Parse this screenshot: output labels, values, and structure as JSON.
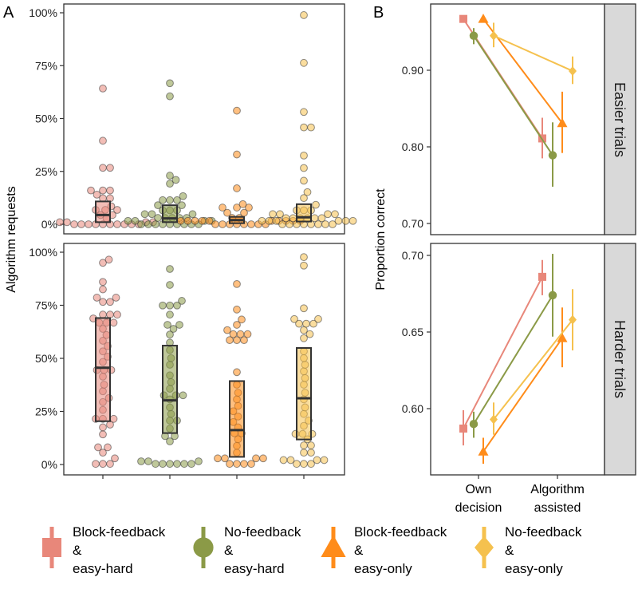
{
  "panel_labels": {
    "a": "A",
    "b": "B"
  },
  "legend": [
    {
      "line1": "Block-feedback",
      "line2": "&",
      "line3": "easy-hard",
      "color": "#E8877A",
      "shape": "square"
    },
    {
      "line1": "No-feedback",
      "line2": "&",
      "line3": "easy-hard",
      "color": "#8B9A47",
      "shape": "circle"
    },
    {
      "line1": "Block-feedback",
      "line2": "&",
      "line3": "easy-only",
      "color": "#FF8C1A",
      "shape": "triangle"
    },
    {
      "line1": "No-feedback",
      "line2": "&",
      "line3": "easy-only",
      "color": "#F5C14E",
      "shape": "diamond"
    }
  ],
  "chart_data": [
    {
      "type": "scatter",
      "title": "A",
      "xlabel": "",
      "ylabel": "Algorithm requests",
      "ylim": [
        0,
        100
      ],
      "yticks": [
        "0%",
        "25%",
        "50%",
        "75%",
        "100%"
      ],
      "groups": [
        "Block-feedback & easy-hard",
        "No-feedback & easy-hard",
        "Block-feedback & easy-only",
        "No-feedback & easy-only"
      ],
      "panels": [
        {
          "name": "Easier trials",
          "boxes": [
            {
              "q1": 1,
              "median": 4.4,
              "q3": 10.8
            },
            {
              "q1": 1,
              "median": 2.8,
              "q3": 9
            },
            {
              "q1": 0.5,
              "median": 2,
              "q3": 3.5
            },
            {
              "q1": 1.3,
              "median": 3.3,
              "q3": 9.5
            }
          ],
          "points": [
            [
              64.2,
              39.5,
              26.7,
              26.7,
              16,
              16,
              16,
              14,
              12.3,
              12.3,
              8.5,
              6.8,
              6.8,
              6.8,
              4.4,
              4.4,
              2.9,
              1,
              1,
              1,
              1,
              0,
              0,
              0,
              0,
              0,
              0,
              0,
              0,
              0,
              0
            ],
            [
              66.7,
              60.5,
              23,
              21,
              19.2,
              13.3,
              11.4,
              11.4,
              11.4,
              9,
              9,
              6.6,
              6.6,
              6.6,
              4.8,
              4.8,
              4.8,
              3,
              3,
              3,
              3,
              3,
              1.6,
              1.6,
              1.6,
              1.6,
              0,
              0,
              0,
              0,
              0,
              0,
              0,
              0,
              0
            ],
            [
              53.7,
              33,
              17,
              9.5,
              7.9,
              7.9,
              7.9,
              5.4,
              5.4,
              3,
              3,
              1.6,
              1.6,
              1.6,
              1.6,
              1.6,
              1.6,
              1.6,
              1.6,
              1.6,
              1.6,
              0,
              0,
              0,
              0,
              0,
              0,
              0,
              0
            ],
            [
              98.9,
              76.3,
              53.1,
              45.8,
              45.8,
              32.5,
              26.6,
              20.6,
              15.2,
              12.4,
              9.2,
              6.6,
              6.6,
              6.6,
              4.8,
              4.8,
              4.8,
              4.8,
              2.9,
              2.9,
              2.9,
              2.9,
              2.9,
              2.9,
              1.6,
              1.6,
              1.6,
              1.6,
              1.6,
              1.6,
              0,
              0,
              0,
              0,
              0,
              0,
              0,
              0
            ]
          ]
        },
        {
          "name": "Harder trials",
          "boxes": [
            {
              "q1": 20.4,
              "median": 45.6,
              "q3": 69
            },
            {
              "q1": 14.8,
              "median": 30.2,
              "q3": 56
            },
            {
              "q1": 3.6,
              "median": 16.2,
              "q3": 39.3
            },
            {
              "q1": 11.8,
              "median": 31.2,
              "q3": 54.9
            }
          ],
          "points": [
            [
              96.5,
              95,
              86,
              82.5,
              78.6,
              78.6,
              76.6,
              76.6,
              70.6,
              70.6,
              70.6,
              68.8,
              66.8,
              66.8,
              66.8,
              63.9,
              61,
              58.3,
              55.8,
              53.3,
              50.8,
              48.3,
              44.5,
              44.5,
              44.5,
              41.4,
              37.6,
              34.5,
              31.3,
              29.4,
              25.7,
              21.5,
              21.5,
              21.5,
              18.8,
              17.5,
              14.2,
              8.1,
              8.1,
              5.6,
              2.9,
              0.3,
              0.3,
              0.3
            ],
            [
              92.1,
              84.6,
              77.1,
              74.9,
              74.9,
              74.9,
              70.6,
              65.8,
              65.8,
              63.9,
              61.2,
              57.4,
              53.9,
              50.1,
              47,
              42,
              38.8,
              35.7,
              32.6,
              32.6,
              32.6,
              30.7,
              26.9,
              23.8,
              20.7,
              20.7,
              16.9,
              13.4,
              13.4,
              10.9,
              1.5,
              1.5,
              1.5,
              0.3,
              0.3,
              0.3,
              0.3,
              0.3,
              0.3
            ],
            [
              85,
              73,
              68.3,
              65.8,
              63.3,
              61.4,
              61.4,
              61.4,
              58.6,
              58.6,
              58.6,
              43.5,
              37.6,
              33.8,
              30.7,
              27.6,
              25.1,
              22.6,
              20,
              17.5,
              14.7,
              14.7,
              11.9,
              8.8,
              5.6,
              2.9,
              2.9,
              2.9,
              2.9,
              0.3,
              0.3,
              0.3,
              0.3
            ],
            [
              97.7,
              93.7,
              73.6,
              68.5,
              68.5,
              66.3,
              66.3,
              66.3,
              63.3,
              61.4,
              59.5,
              53.3,
              50.1,
              47,
              43.9,
              40.7,
              37.6,
              33.8,
              30.7,
              26.9,
              23.8,
              20.7,
              18.2,
              14.4,
              14.4,
              14.4,
              11.9,
              9,
              9,
              5.6,
              5.6,
              2.1,
              2.1,
              2.1,
              2.1,
              0.3,
              0.3,
              0.3
            ]
          ]
        }
      ]
    },
    {
      "type": "line",
      "title": "B",
      "ylabel": "Proportion correct",
      "categories": [
        "Own decision",
        "Algorithm assisted"
      ],
      "category_lines": [
        [
          "Own",
          "decision"
        ],
        [
          "Algorithm",
          "assisted"
        ]
      ],
      "panels": [
        {
          "name": "Easier trials",
          "ylim": [
            0.68,
            0.98
          ],
          "yticks": [
            "0.70",
            "0.80",
            "0.90"
          ],
          "ytick_values": [
            0.7,
            0.8,
            0.9
          ],
          "series": [
            {
              "name": "Block-feedback & easy-hard",
              "values": [
                0.967,
                0.811
              ],
              "lower": [
                0.963,
                0.785
              ],
              "upper": [
                0.971,
                0.838
              ]
            },
            {
              "name": "No-feedback & easy-hard",
              "values": [
                0.945,
                0.789
              ],
              "lower": [
                0.934,
                0.748
              ],
              "upper": [
                0.955,
                0.832
              ]
            },
            {
              "name": "Block-feedback & easy-only",
              "values": [
                0.967,
                0.831
              ],
              "lower": [
                0.963,
                0.792
              ],
              "upper": [
                0.971,
                0.872
              ]
            },
            {
              "name": "No-feedback & easy-only",
              "values": [
                0.945,
                0.899
              ],
              "lower": [
                0.93,
                0.882
              ],
              "upper": [
                0.962,
                0.918
              ]
            }
          ]
        },
        {
          "name": "Harder trials",
          "ylim": [
            0.555,
            0.708
          ],
          "yticks": [
            "0.60",
            "0.65",
            "0.70"
          ],
          "ytick_values": [
            0.6,
            0.65,
            0.7
          ],
          "series": [
            {
              "name": "Block-feedback & easy-hard",
              "values": [
                0.587,
                0.686
              ],
              "lower": [
                0.576,
                0.674
              ],
              "upper": [
                0.599,
                0.697
              ]
            },
            {
              "name": "No-feedback & easy-hard",
              "values": [
                0.59,
                0.674
              ],
              "lower": [
                0.581,
                0.647
              ],
              "upper": [
                0.598,
                0.701
              ]
            },
            {
              "name": "Block-feedback & easy-only",
              "values": [
                0.572,
                0.646
              ],
              "lower": [
                0.564,
                0.627
              ],
              "upper": [
                0.581,
                0.666
              ]
            },
            {
              "name": "No-feedback & easy-only",
              "values": [
                0.593,
                0.658
              ],
              "lower": [
                0.583,
                0.638
              ],
              "upper": [
                0.604,
                0.678
              ]
            }
          ]
        }
      ]
    }
  ]
}
